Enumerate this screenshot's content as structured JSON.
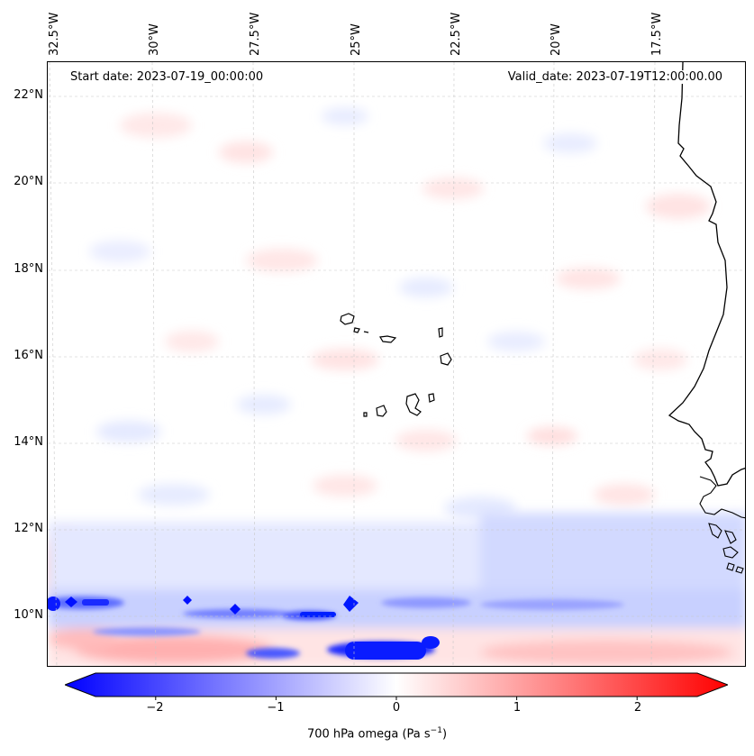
{
  "map": {
    "start_date_label": "Start date: 2023-07-19_00:00:00",
    "valid_date_label": "Valid_date: 2023-07-19T12:00:00.00",
    "longitude_labels": [
      "32.5°W",
      "30°W",
      "27.5°W",
      "25°W",
      "22.5°W",
      "20°W",
      "17.5°W"
    ],
    "latitude_labels": [
      "22°N",
      "20°N",
      "18°N",
      "16°N",
      "14°N",
      "12°N",
      "10°N"
    ]
  },
  "colorbar": {
    "label": "700 hPa omega (Pa s",
    "label_superscript": "−1",
    "label_close": ")",
    "ticks": [
      "−2",
      "−1",
      "0",
      "1",
      "2"
    ],
    "range": [
      -2.75,
      2.75
    ],
    "colors": {
      "low": "#0000ff",
      "mid": "#ffffff",
      "high": "#ff0000"
    }
  }
}
